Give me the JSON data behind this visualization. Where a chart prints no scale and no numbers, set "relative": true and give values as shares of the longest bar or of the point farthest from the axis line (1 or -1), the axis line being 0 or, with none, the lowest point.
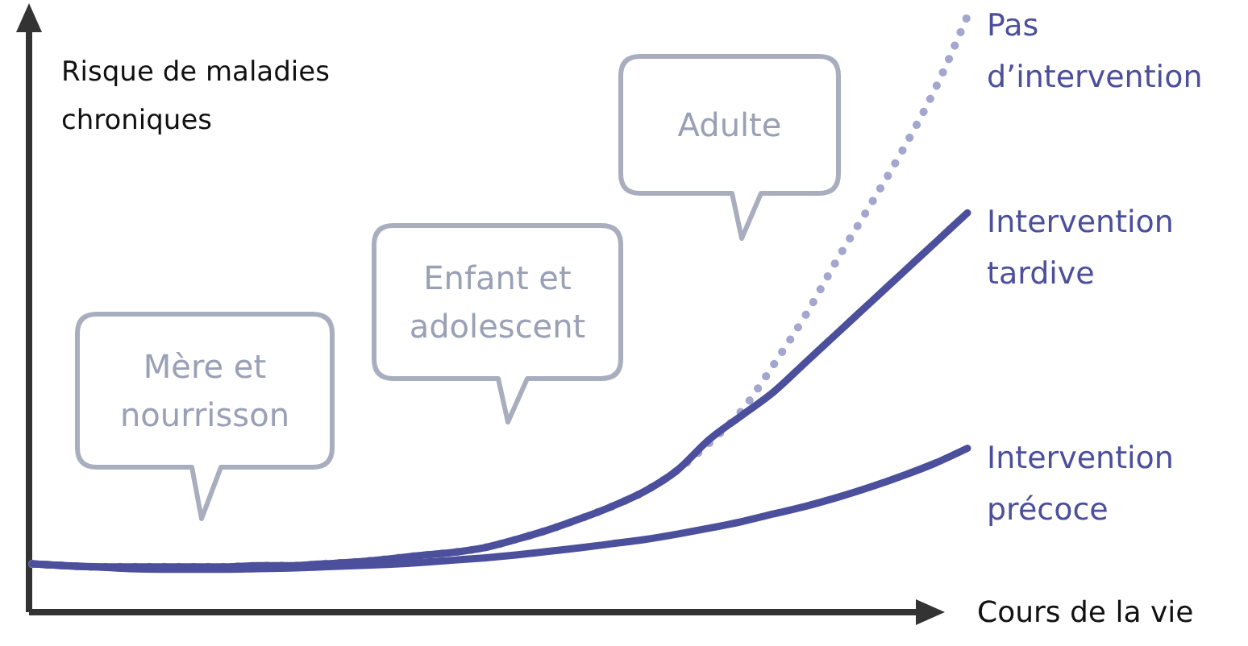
{
  "chart_data": {
    "type": "line",
    "relative": true,
    "ylabel": "Risque de maladies chroniques",
    "xlabel": "Cours de la vie",
    "categories": [
      null,
      null,
      null,
      null,
      null,
      null,
      null,
      null,
      null,
      null,
      null,
      null,
      null,
      null,
      null,
      null,
      null,
      null,
      null,
      null,
      null,
      null,
      null,
      null,
      null,
      null,
      null,
      null,
      null,
      null
    ],
    "series": [
      {
        "name": "Pas d’intervention",
        "color": "#a3a6cf",
        "line_style": "dotted",
        "values": [
          0.081,
          0.078,
          0.076,
          0.076,
          0.076,
          0.076,
          0.076,
          0.078,
          0.078,
          0.081,
          0.084,
          0.089,
          0.095,
          0.1,
          0.108,
          0.122,
          0.138,
          0.157,
          0.178,
          0.203,
          0.238,
          0.284,
          0.338,
          0.416,
          0.5,
          0.595,
          0.684,
          0.776,
          0.878,
          1
        ]
      },
      {
        "name": "Intervention tardive",
        "color": "#4b4f9c",
        "line_style": "solid",
        "values": [
          0.081,
          0.078,
          0.076,
          0.076,
          0.076,
          0.076,
          0.076,
          0.078,
          0.078,
          0.081,
          0.084,
          0.089,
          0.095,
          0.1,
          0.108,
          0.122,
          0.138,
          0.157,
          0.178,
          0.203,
          0.238,
          0.29,
          0.33,
          0.37,
          0.42,
          0.47,
          0.52,
          0.57,
          0.62,
          0.67
        ]
      },
      {
        "name": "Intervention précoce",
        "color": "#4b4f9c",
        "line_style": "solid",
        "values": [
          0.081,
          0.078,
          0.076,
          0.073,
          0.072,
          0.072,
          0.072,
          0.073,
          0.074,
          0.076,
          0.078,
          0.08,
          0.083,
          0.087,
          0.091,
          0.096,
          0.102,
          0.108,
          0.115,
          0.122,
          0.131,
          0.141,
          0.152,
          0.165,
          0.178,
          0.193,
          0.21,
          0.229,
          0.25,
          0.275
        ]
      }
    ],
    "annotations": [
      "Mère et\nnourrisson",
      "Enfant et\nadolescent",
      "Adulte"
    ],
    "legend": false
  }
}
